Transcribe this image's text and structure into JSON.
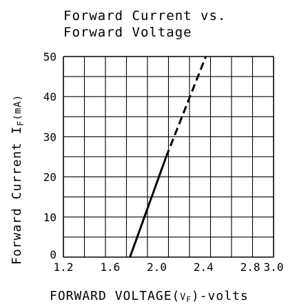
{
  "chart_data": {
    "type": "line",
    "title_line1": "Forward Current vs.",
    "title_line2": "Forward Voltage",
    "ylabel": "Forward Current I",
    "ylabel_sub": "F",
    "ylabel_unit": "(mA)",
    "xlabel": "FORWARD VOLTAGE(",
    "xlabel_sym": "V",
    "xlabel_sub": "F",
    "xlabel_end": ")-volts",
    "xlim": [
      1.2,
      3.0
    ],
    "ylim": [
      0,
      50
    ],
    "x_ticks": [
      "1.2",
      "1.6",
      "2.0",
      "2.4",
      "2.8",
      "3.0"
    ],
    "x_tick_values": [
      1.2,
      1.6,
      2.0,
      2.4,
      2.8,
      3.0
    ],
    "y_ticks": [
      "0",
      "10",
      "20",
      "30",
      "40",
      "50"
    ],
    "y_tick_values": [
      0,
      10,
      20,
      30,
      40,
      50
    ],
    "grid": true,
    "series": [
      {
        "style": "solid",
        "x": [
          1.77,
          2.08
        ],
        "y": [
          0,
          25
        ]
      },
      {
        "style": "dashed",
        "x": [
          2.08,
          2.42
        ],
        "y": [
          25,
          50
        ]
      }
    ]
  }
}
